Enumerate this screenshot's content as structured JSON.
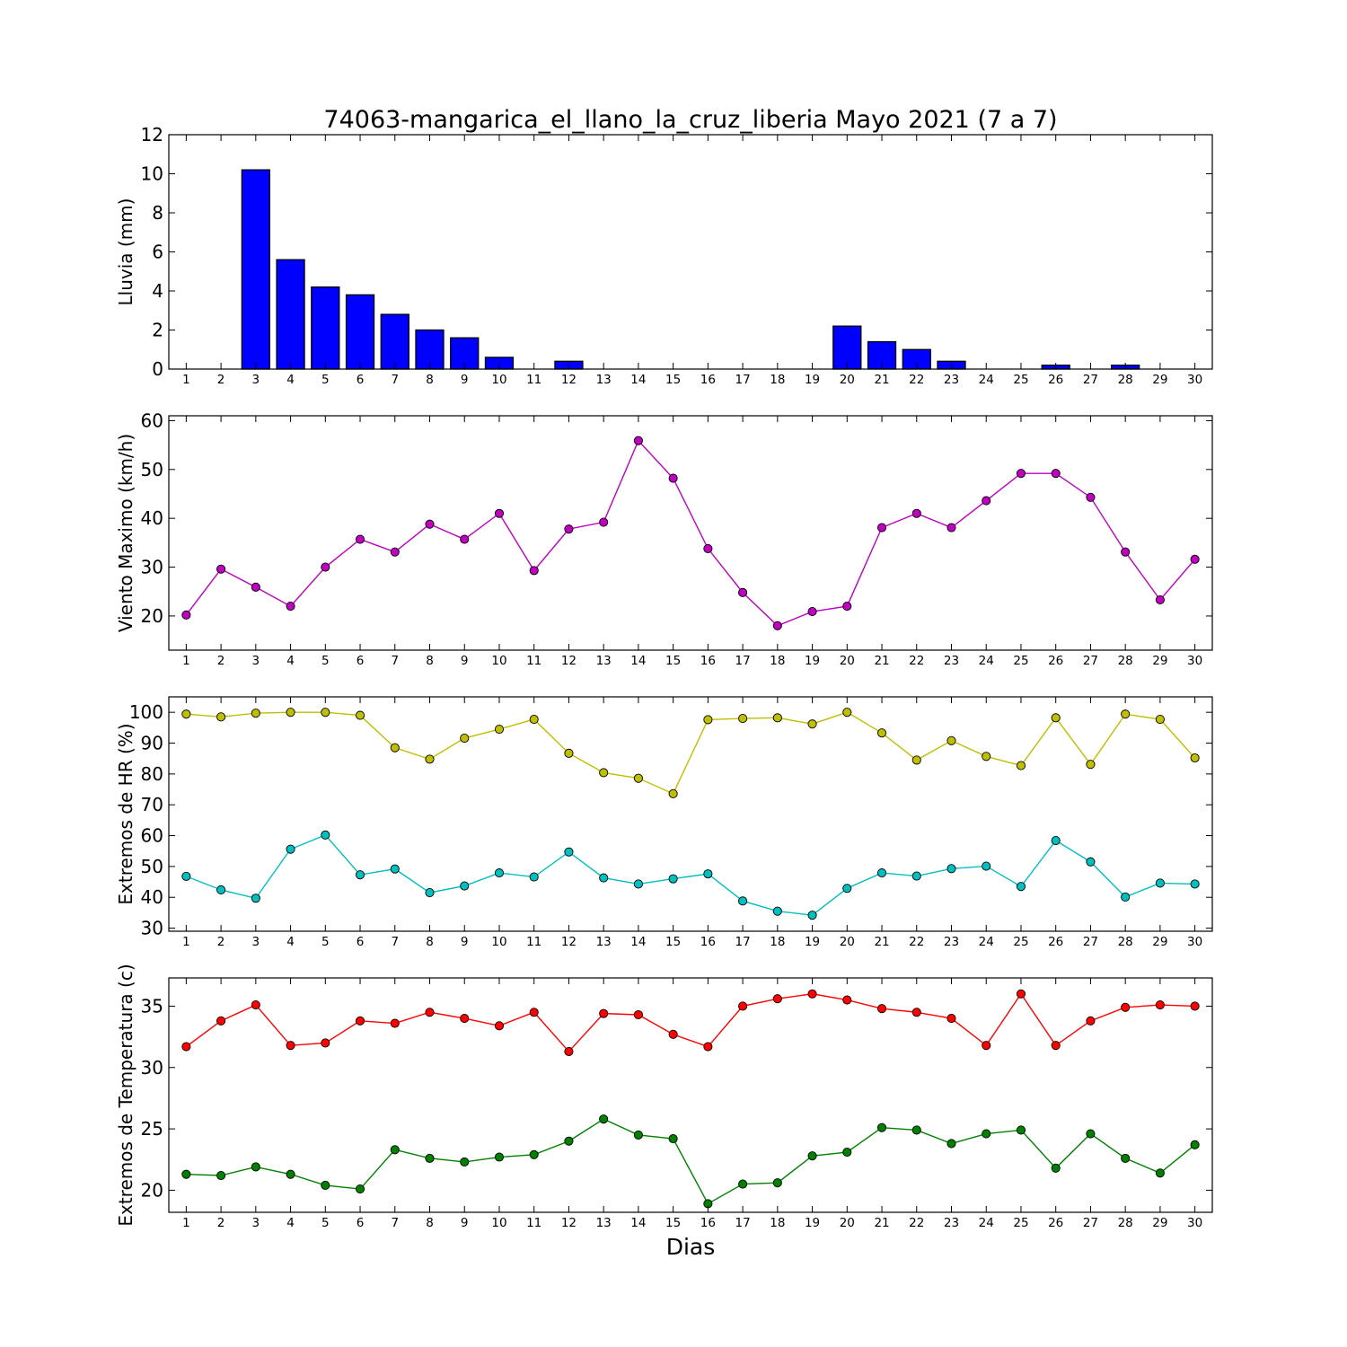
{
  "title": "74063-mangarica_el_llano_la_cruz_liberia Mayo 2021  (7 a 7)",
  "xlabel": "Dias",
  "chart_data": [
    {
      "type": "bar",
      "ylabel": "Lluvia (mm)",
      "ylim": [
        0,
        12
      ],
      "yticks": [
        0,
        2,
        4,
        6,
        8,
        10,
        12
      ],
      "x": [
        1,
        2,
        3,
        4,
        5,
        6,
        7,
        8,
        9,
        10,
        11,
        12,
        13,
        14,
        15,
        16,
        17,
        18,
        19,
        20,
        21,
        22,
        23,
        24,
        25,
        26,
        27,
        28,
        29,
        30
      ],
      "series": [
        {
          "color": "#0000ff",
          "values": [
            0,
            0,
            10.2,
            5.6,
            4.2,
            3.8,
            2.8,
            2.0,
            1.6,
            0.6,
            0,
            0.4,
            0,
            0,
            0,
            0,
            0,
            0,
            0,
            2.2,
            1.4,
            1.0,
            0.4,
            0,
            0,
            0.2,
            0,
            0.2,
            0,
            0
          ]
        }
      ],
      "grid": false
    },
    {
      "type": "line",
      "ylabel": "Viento Maximo (km/h)",
      "ylim": [
        13,
        61
      ],
      "yticks": [
        20,
        30,
        40,
        50,
        60
      ],
      "x": [
        1,
        2,
        3,
        4,
        5,
        6,
        7,
        8,
        9,
        10,
        11,
        12,
        13,
        14,
        15,
        16,
        17,
        18,
        19,
        20,
        21,
        22,
        23,
        24,
        25,
        26,
        27,
        28,
        29,
        30
      ],
      "series": [
        {
          "color": "#bf00bf",
          "values": [
            20.2,
            29.6,
            25.9,
            22.0,
            30.0,
            35.7,
            33.1,
            38.8,
            35.7,
            41.0,
            29.3,
            37.8,
            39.2,
            55.9,
            48.2,
            33.8,
            24.8,
            18.0,
            20.9,
            22.0,
            38.1,
            41.0,
            38.1,
            43.6,
            49.2,
            49.2,
            44.3,
            33.1,
            23.3,
            31.6
          ]
        }
      ],
      "grid": false
    },
    {
      "type": "line",
      "ylabel": "Extremos de HR (%)",
      "ylim": [
        29,
        105
      ],
      "yticks": [
        30,
        40,
        50,
        60,
        70,
        80,
        90,
        100
      ],
      "x": [
        1,
        2,
        3,
        4,
        5,
        6,
        7,
        8,
        9,
        10,
        11,
        12,
        13,
        14,
        15,
        16,
        17,
        18,
        19,
        20,
        21,
        22,
        23,
        24,
        25,
        26,
        27,
        28,
        29,
        30
      ],
      "series": [
        {
          "color": "#bfbf00",
          "values": [
            99.4,
            98.5,
            99.7,
            100,
            100,
            99,
            88.5,
            84.8,
            91.6,
            94.5,
            97.7,
            86.7,
            80.4,
            78.6,
            73.6,
            97.6,
            98,
            98.2,
            96.2,
            100,
            93.3,
            84.5,
            90.8,
            85.7,
            82.7,
            98.2,
            83.1,
            99.4,
            97.7,
            85.2
          ]
        },
        {
          "color": "#00bfbf",
          "values": [
            46.8,
            42.4,
            39.7,
            55.6,
            60.2,
            47.3,
            49.2,
            41.5,
            43.7,
            47.9,
            46.6,
            54.7,
            46.3,
            44.3,
            46.0,
            47.6,
            38.8,
            35.5,
            34.2,
            42.9,
            47.9,
            46.9,
            49.3,
            50.1,
            43.5,
            58.4,
            51.5,
            40.1,
            44.6,
            44.3
          ]
        }
      ],
      "grid": false
    },
    {
      "type": "line",
      "ylabel": "Extremos de Temperatura (c)",
      "ylim": [
        18.2,
        37.3
      ],
      "yticks": [
        20,
        25,
        30,
        35
      ],
      "x": [
        1,
        2,
        3,
        4,
        5,
        6,
        7,
        8,
        9,
        10,
        11,
        12,
        13,
        14,
        15,
        16,
        17,
        18,
        19,
        20,
        21,
        22,
        23,
        24,
        25,
        26,
        27,
        28,
        29,
        30
      ],
      "series": [
        {
          "color": "#ff0000",
          "values": [
            31.7,
            33.8,
            35.1,
            31.8,
            32.0,
            33.8,
            33.6,
            34.5,
            34.0,
            33.4,
            34.5,
            31.3,
            34.4,
            34.3,
            32.7,
            31.7,
            35.0,
            35.6,
            36.0,
            35.5,
            34.8,
            34.5,
            34.0,
            31.8,
            36.0,
            31.8,
            33.8,
            34.9,
            35.1,
            35.0
          ]
        },
        {
          "color": "#008000",
          "values": [
            21.3,
            21.2,
            21.9,
            21.3,
            20.4,
            20.1,
            23.3,
            22.6,
            22.3,
            22.7,
            22.9,
            24.0,
            25.8,
            24.5,
            24.2,
            18.9,
            20.5,
            20.6,
            22.8,
            23.1,
            25.1,
            24.9,
            23.8,
            24.6,
            24.9,
            21.8,
            24.6,
            22.6,
            21.4,
            23.7
          ]
        }
      ],
      "grid": false
    }
  ]
}
